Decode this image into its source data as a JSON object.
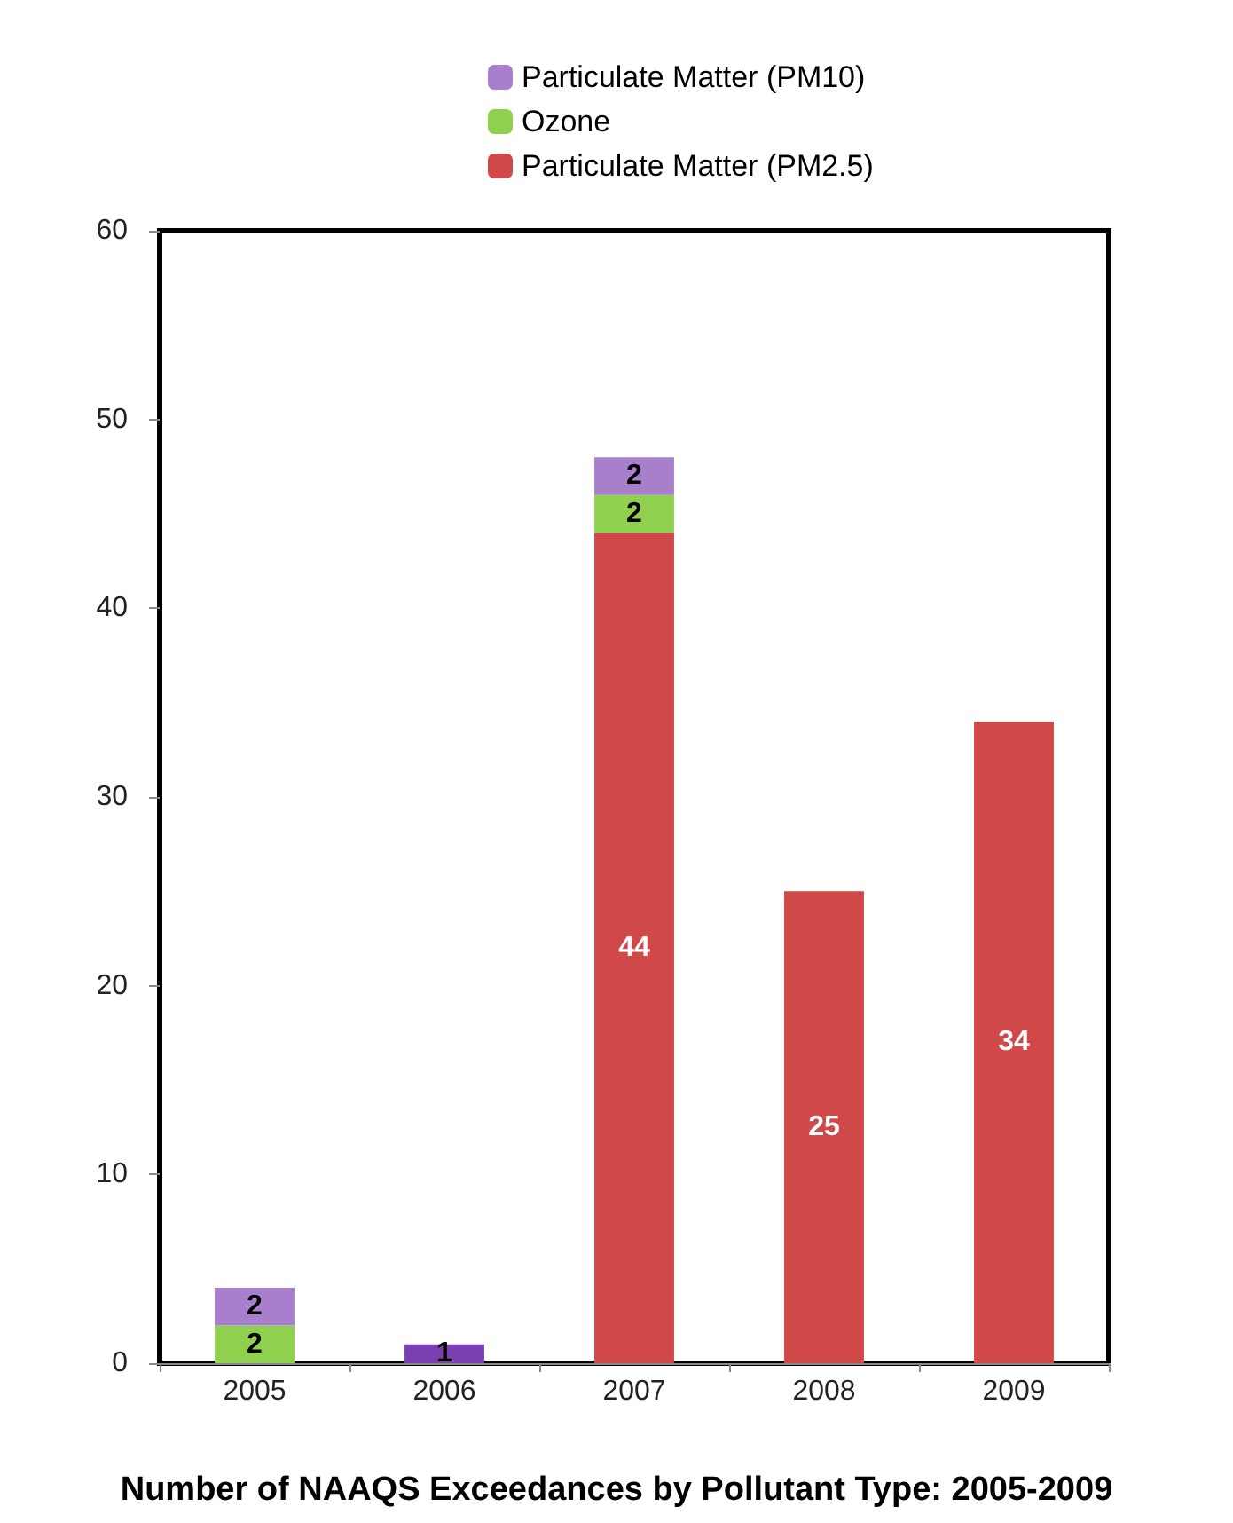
{
  "chart_data": {
    "type": "bar",
    "title": "Number of NAAQS Exceedances by Pollutant Type: 2005-2009",
    "categories": [
      "2005",
      "2006",
      "2007",
      "2008",
      "2009"
    ],
    "stacked": true,
    "data_labels": true,
    "grid": false,
    "legend": "top",
    "ylim": [
      0,
      60
    ],
    "yticks": [
      0,
      10,
      20,
      30,
      40,
      50,
      60
    ],
    "series": [
      {
        "name": "Particulate Matter (PM2.5)",
        "color": "#d04848",
        "values": [
          null,
          null,
          44,
          25,
          34
        ]
      },
      {
        "name": "Ozone",
        "color": "#8fd14f",
        "values": [
          2,
          null,
          2,
          null,
          null
        ]
      },
      {
        "name": "Particulate Matter (PM10)",
        "color": "#a77fcc",
        "colors": [
          "#a77fcc",
          "#7a3fb0",
          "#a77fcc",
          "#a77fcc",
          "#a77fcc"
        ],
        "values": [
          2,
          1,
          2,
          null,
          null
        ]
      }
    ]
  }
}
